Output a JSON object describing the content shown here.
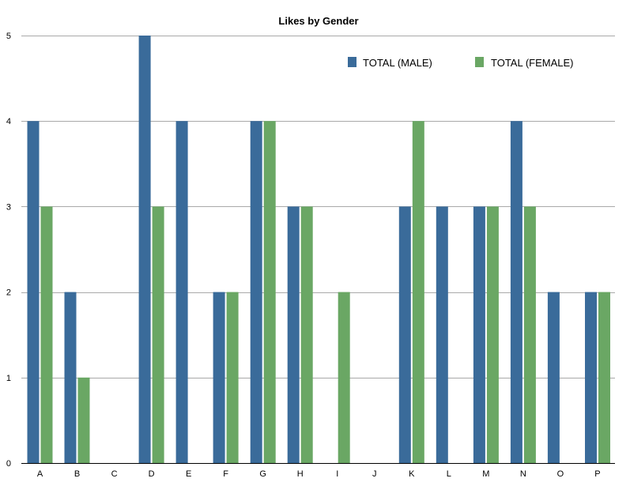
{
  "chart_data": {
    "type": "bar",
    "title": "Likes by Gender",
    "xlabel": "",
    "ylabel": "",
    "categories": [
      "A",
      "B",
      "C",
      "D",
      "E",
      "F",
      "G",
      "H",
      "I",
      "J",
      "K",
      "L",
      "M",
      "N",
      "O",
      "P"
    ],
    "series": [
      {
        "name": "TOTAL (MALE)",
        "color": "#3a6b9a",
        "values": [
          4,
          2,
          0,
          5,
          4,
          2,
          4,
          3,
          0,
          0,
          3,
          3,
          3,
          4,
          2,
          2
        ]
      },
      {
        "name": "TOTAL (FEMALE)",
        "color": "#6aa764",
        "values": [
          3,
          1,
          0,
          3,
          0,
          2,
          4,
          3,
          2,
          0,
          4,
          0,
          3,
          3,
          0,
          2
        ]
      }
    ],
    "ylim": [
      0,
      5
    ],
    "yticks": [
      0,
      1,
      2,
      3,
      4,
      5
    ],
    "grid": true,
    "legend_position": "top-right"
  }
}
